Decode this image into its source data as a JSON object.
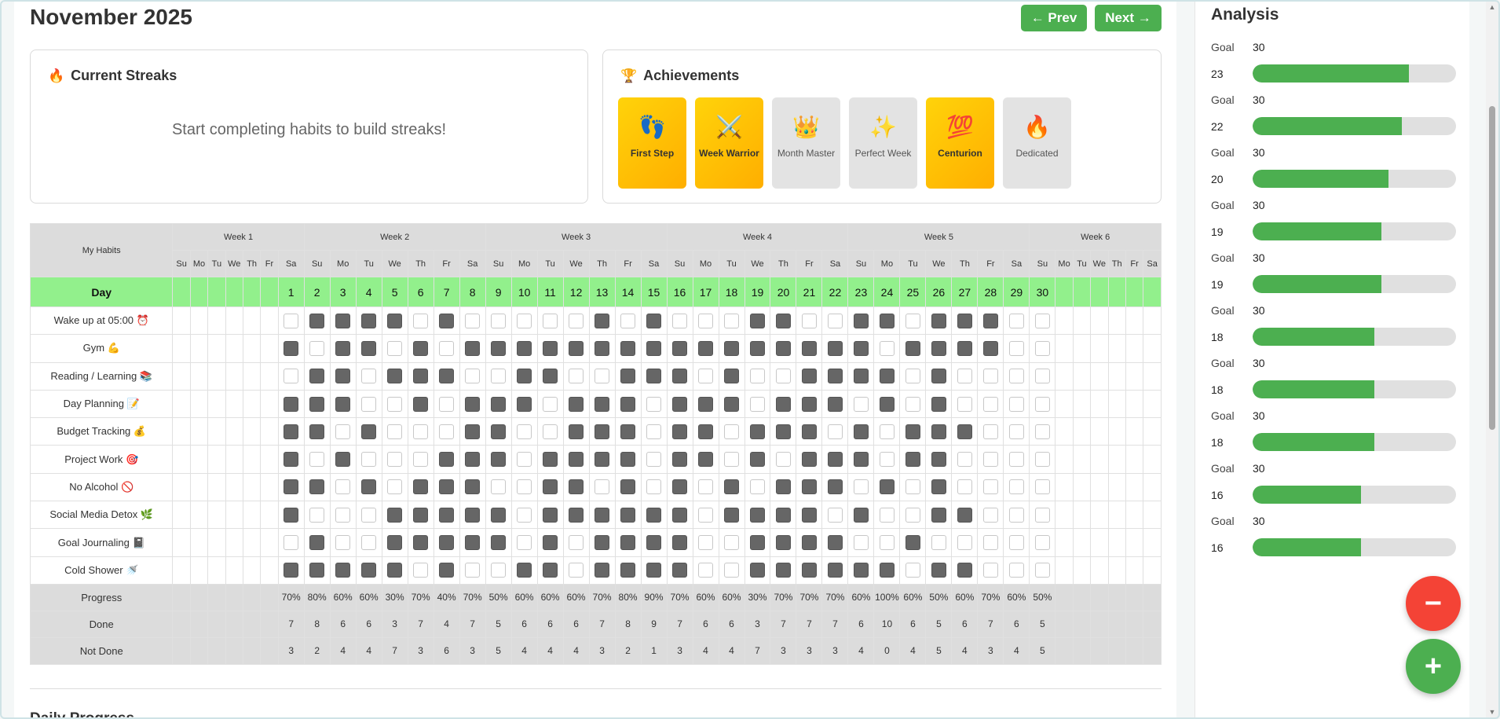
{
  "header": {
    "title": "November 2025",
    "prev_label": "← Prev",
    "next_label": "Next →"
  },
  "streaks": {
    "title": "Current Streaks",
    "icon": "🔥",
    "empty_message": "Start completing habits to build streaks!"
  },
  "achievements": {
    "title": "Achievements",
    "icon": "🏆",
    "items": [
      {
        "emoji": "👣",
        "label": "First Step",
        "unlocked": true
      },
      {
        "emoji": "⚔️",
        "label": "Week Warrior",
        "unlocked": true
      },
      {
        "emoji": "👑",
        "label": "Month Master",
        "unlocked": false
      },
      {
        "emoji": "✨",
        "label": "Perfect Week",
        "unlocked": false
      },
      {
        "emoji": "💯",
        "label": "Centurion",
        "unlocked": true
      },
      {
        "emoji": "🔥",
        "label": "Dedicated",
        "unlocked": false
      }
    ]
  },
  "grid": {
    "habits_label": "My Habits",
    "day_label": "Day",
    "weeks": [
      {
        "label": "Week 1",
        "span": 7
      },
      {
        "label": "Week 2",
        "span": 7
      },
      {
        "label": "Week 3",
        "span": 7
      },
      {
        "label": "Week 4",
        "span": 7
      },
      {
        "label": "Week 5",
        "span": 7
      },
      {
        "label": "Week 6",
        "span": 7
      }
    ],
    "dow": [
      "Su",
      "Mo",
      "Tu",
      "We",
      "Th",
      "Fr",
      "Sa",
      "Su",
      "Mo",
      "Tu",
      "We",
      "Th",
      "Fr",
      "Sa",
      "Su",
      "Mo",
      "Tu",
      "We",
      "Th",
      "Fr",
      "Sa",
      "Su",
      "Mo",
      "Tu",
      "We",
      "Th",
      "Fr",
      "Sa",
      "Su",
      "Mo",
      "Tu",
      "We",
      "Th",
      "Fr",
      "Sa",
      "Su",
      "Mo",
      "Tu",
      "We",
      "Th",
      "Fr",
      "Sa"
    ],
    "days": [
      "",
      "",
      "",
      "",
      "",
      "",
      "1",
      "2",
      "3",
      "4",
      "5",
      "6",
      "7",
      "8",
      "9",
      "10",
      "11",
      "12",
      "13",
      "14",
      "15",
      "16",
      "17",
      "18",
      "19",
      "20",
      "21",
      "22",
      "23",
      "24",
      "25",
      "26",
      "27",
      "28",
      "29",
      "30",
      "",
      "",
      "",
      "",
      "",
      ""
    ],
    "first_day_index": 6,
    "habits": [
      {
        "name": "Wake up at 05:00 ⏰",
        "done": "0111101000001010001100110111"
      },
      {
        "name": "Gym 💪",
        "done": "101101011111111111111110111100"
      },
      {
        "name": "Reading / Learning 📚",
        "done": "011011100110011101001111010"
      },
      {
        "name": "Day Planning 📝",
        "done": "111001011101110111011101010"
      },
      {
        "name": "Budget Tracking 💰",
        "done": "110100011001110110111010111"
      },
      {
        "name": "Project Work 🎯",
        "done": "101000111011110110101110110"
      },
      {
        "name": "No Alcohol 🚫",
        "done": "110101110011010101011101010"
      },
      {
        "name": "Social Media Detox 🌿",
        "done": "100011111011111101111010011"
      },
      {
        "name": "Goal Journaling 📓",
        "done": "010011111010111100111100100"
      },
      {
        "name": "Cold Shower 🚿",
        "done": "111110100110111100111111011"
      }
    ],
    "progress_label": "Progress",
    "done_label": "Done",
    "notdone_label": "Not Done",
    "progress": [
      "70%",
      "80%",
      "60%",
      "60%",
      "30%",
      "70%",
      "40%",
      "70%",
      "50%",
      "60%",
      "60%",
      "60%",
      "70%",
      "80%",
      "90%",
      "70%",
      "60%",
      "60%",
      "30%",
      "70%",
      "70%",
      "70%",
      "60%",
      "100%",
      "60%",
      "50%",
      "60%",
      "70%",
      "60%",
      "50%"
    ],
    "done": [
      "7",
      "8",
      "6",
      "6",
      "3",
      "7",
      "4",
      "7",
      "5",
      "6",
      "6",
      "6",
      "7",
      "8",
      "9",
      "7",
      "6",
      "6",
      "3",
      "7",
      "7",
      "7",
      "6",
      "10",
      "6",
      "5",
      "6",
      "7",
      "6",
      "5"
    ],
    "not_done": [
      "3",
      "2",
      "4",
      "4",
      "7",
      "3",
      "6",
      "3",
      "5",
      "4",
      "4",
      "4",
      "3",
      "2",
      "1",
      "3",
      "4",
      "4",
      "7",
      "3",
      "3",
      "3",
      "4",
      "0",
      "4",
      "5",
      "4",
      "3",
      "4",
      "5"
    ]
  },
  "daily_progress_title": "Daily Progress",
  "analysis": {
    "title": "Analysis",
    "goal_label": "Goal",
    "rows": [
      {
        "goal": "30",
        "count": "23"
      },
      {
        "goal": "30",
        "count": "22"
      },
      {
        "goal": "30",
        "count": "20"
      },
      {
        "goal": "30",
        "count": "19"
      },
      {
        "goal": "30",
        "count": "19"
      },
      {
        "goal": "30",
        "count": "18"
      },
      {
        "goal": "30",
        "count": "18"
      },
      {
        "goal": "30",
        "count": "18"
      },
      {
        "goal": "30",
        "count": "16"
      },
      {
        "goal": "30",
        "count": "16"
      }
    ]
  },
  "fab": {
    "minus": "−",
    "plus": "+"
  },
  "colors": {
    "accent": "#4caf50",
    "danger": "#f44336",
    "day_row": "#92f08c",
    "checked": "#666666",
    "achievement": "#ffc107"
  }
}
